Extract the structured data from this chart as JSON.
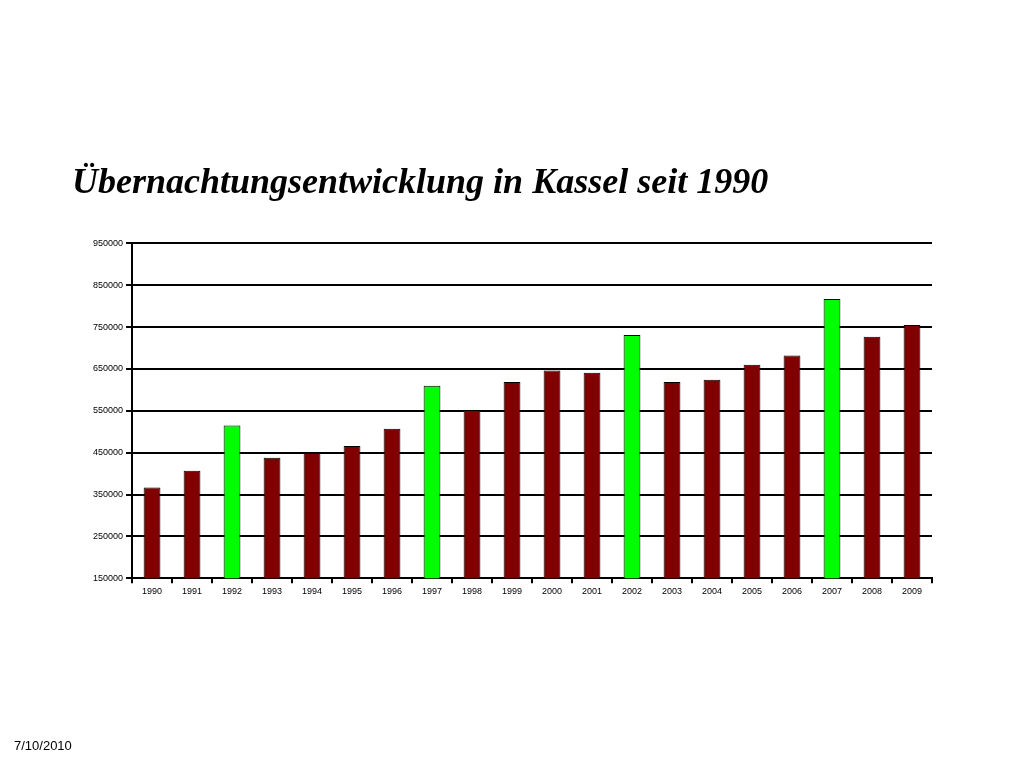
{
  "chart_data": {
    "type": "bar",
    "title": "Übernachtungsentwicklung in Kassel seit 1990",
    "categories": [
      "1990",
      "1991",
      "1992",
      "1993",
      "1994",
      "1995",
      "1996",
      "1997",
      "1998",
      "1999",
      "2000",
      "2001",
      "2002",
      "2003",
      "2004",
      "2005",
      "2006",
      "2007",
      "2008",
      "2009"
    ],
    "values": [
      367000,
      407000,
      515000,
      438000,
      450000,
      466000,
      507000,
      610000,
      552000,
      619000,
      646000,
      641000,
      731000,
      619000,
      624000,
      660000,
      682000,
      817000,
      727000,
      755000
    ],
    "colors": [
      "#800000",
      "#800000",
      "#00ff00",
      "#800000",
      "#800000",
      "#800000",
      "#800000",
      "#00ff00",
      "#800000",
      "#800000",
      "#800000",
      "#800000",
      "#00ff00",
      "#800000",
      "#800000",
      "#800000",
      "#800000",
      "#00ff00",
      "#800000",
      "#800000"
    ],
    "ylim": [
      150000,
      950000
    ],
    "yticks": [
      150000,
      250000,
      350000,
      450000,
      550000,
      650000,
      750000,
      850000,
      950000
    ],
    "grid": "y",
    "legend": false,
    "annotations": [
      "7/10/2010"
    ]
  }
}
